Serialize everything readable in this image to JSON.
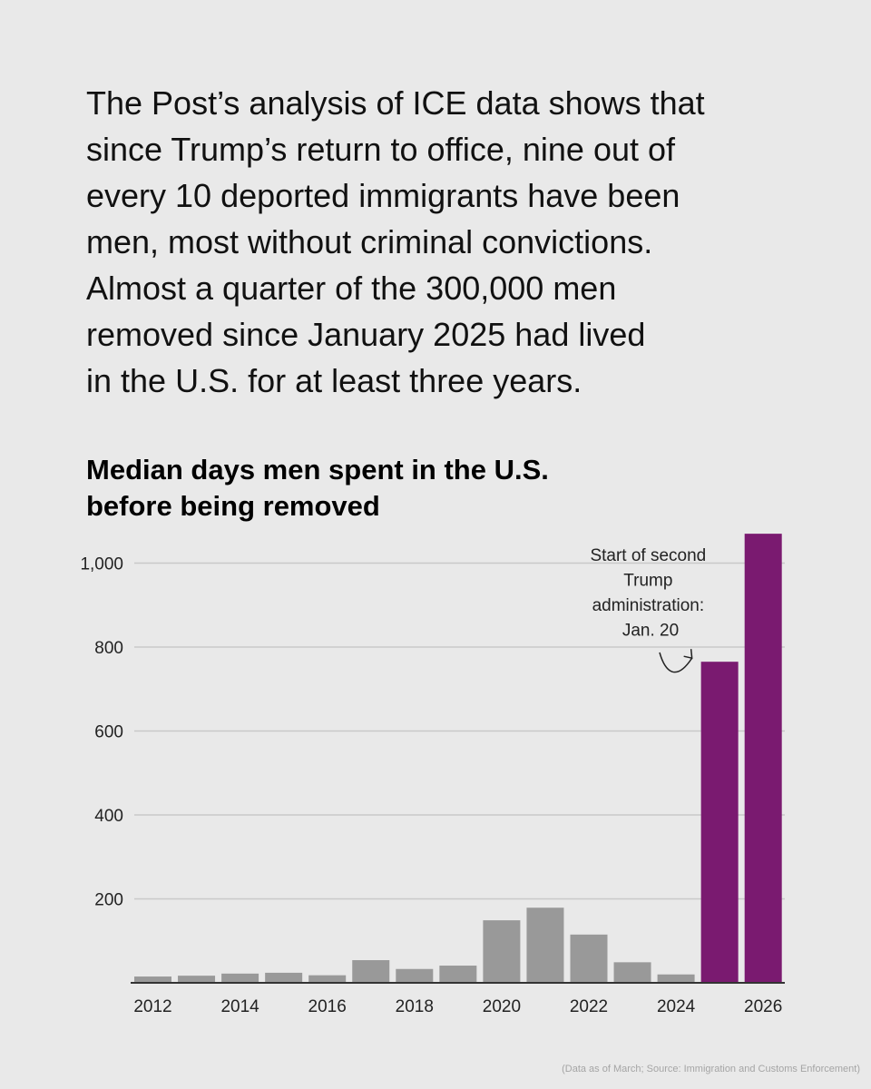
{
  "intro": {
    "lines": [
      "The Post’s analysis of ICE data shows that",
      "since Trump’s return to office, nine out of",
      "every 10 deported immigrants have been",
      "men, most without criminal convictions.",
      "Almost a quarter of the 300,000 men",
      "removed since January 2025 had lived",
      "in the U.S. for at least three years."
    ]
  },
  "chart_title": {
    "lines": [
      "Median days men spent in the U.S.",
      "before being removed"
    ]
  },
  "source": "(Data as of March; Source: Immigration and Customs Enforcement)",
  "chart_data": {
    "type": "bar",
    "title": "Median days men spent in the U.S. before being removed",
    "xlabel": "",
    "ylabel": "",
    "categories": [
      "2012",
      "2013",
      "2014",
      "2015",
      "2016",
      "2017",
      "2018",
      "2019",
      "2020",
      "2021",
      "2022",
      "2023",
      "2024",
      "2025",
      "2026"
    ],
    "values": [
      15,
      17,
      22,
      24,
      18,
      54,
      33,
      41,
      149,
      179,
      115,
      49,
      20,
      765,
      1070
    ],
    "highlight_categories": [
      "2025",
      "2026"
    ],
    "ylim": [
      0,
      1070
    ],
    "y_ticks": [
      {
        "value": 200,
        "label": "200"
      },
      {
        "value": 400,
        "label": "400"
      },
      {
        "value": 600,
        "label": "600"
      },
      {
        "value": 800,
        "label": "800"
      },
      {
        "value": 1000,
        "label": "1,000"
      }
    ],
    "x_tick_labels": [
      "2012",
      "2014",
      "2016",
      "2018",
      "2020",
      "2022",
      "2024",
      "2026"
    ],
    "grid": true,
    "colors": {
      "default_bar": "#999999",
      "highlight_bar": "#7a1a70",
      "gridline": "#c9c9c9",
      "baseline": "#333333"
    },
    "annotation": {
      "lines": [
        "Start of second",
        "Trump",
        "administration:",
        "Jan. 20"
      ],
      "target_category": "2025"
    }
  }
}
